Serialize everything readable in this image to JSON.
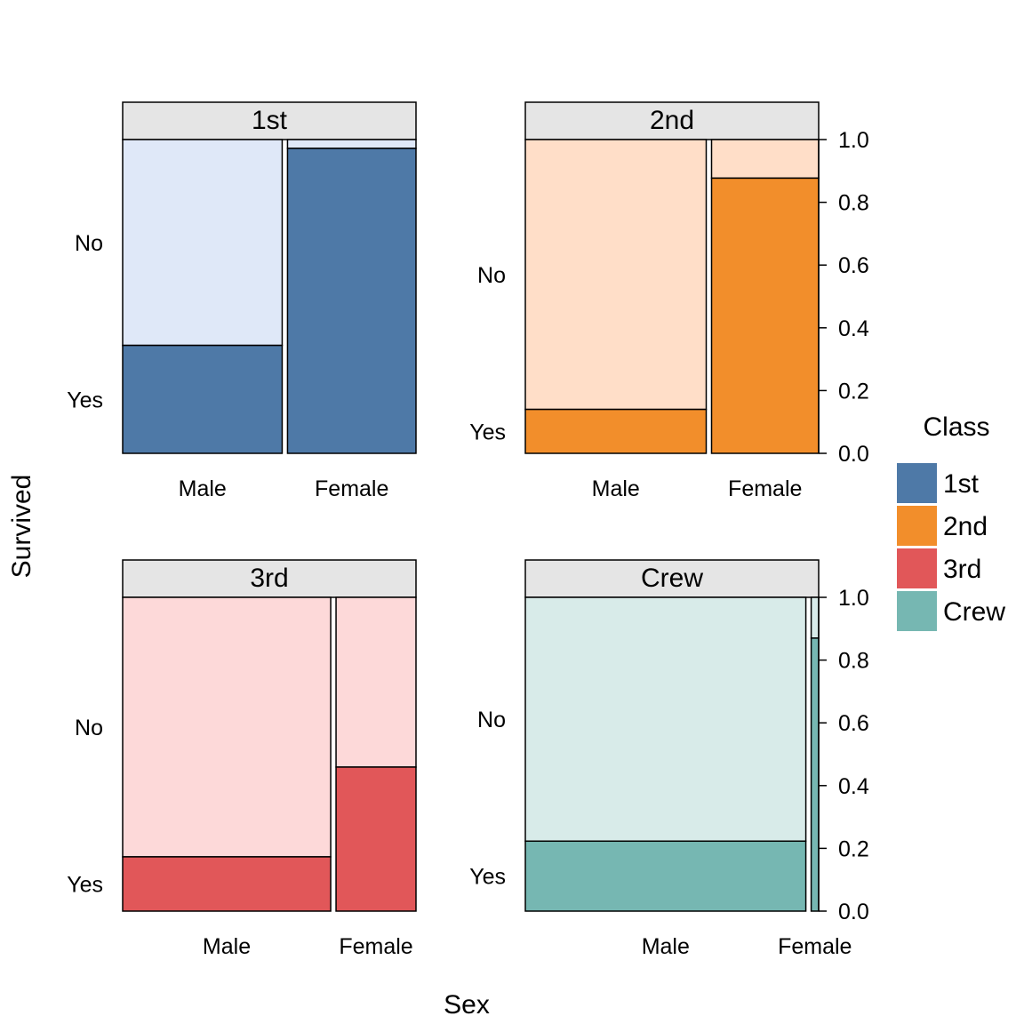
{
  "chart_data": {
    "type": "mosaic",
    "xlabel": "Sex",
    "ylabel": "Survived",
    "legend": {
      "title": "Class",
      "placement": "right",
      "entries": [
        "1st",
        "2nd",
        "3rd",
        "Crew"
      ]
    },
    "x_categories": [
      "Male",
      "Female"
    ],
    "y_categories": [
      "Yes",
      "No"
    ],
    "y_axis": {
      "range": [
        0,
        1
      ],
      "ticks": [
        "0.0",
        "0.2",
        "0.4",
        "0.6",
        "0.8",
        "1.0"
      ]
    },
    "colors": {
      "1st": {
        "dark": "#4E79A7",
        "light": "#DFE8F8"
      },
      "2nd": {
        "dark": "#F28E2B",
        "light": "#FFDEC8"
      },
      "3rd": {
        "dark": "#E15759",
        "light": "#FDD9D9"
      },
      "Crew": {
        "dark": "#76B7B2",
        "light": "#D8EBE9"
      }
    },
    "panels": [
      {
        "title": "1st",
        "counts": {
          "Male": 180,
          "Female": 145
        },
        "survived_fraction": {
          "Male": 0.344,
          "Female": 0.972
        }
      },
      {
        "title": "2nd",
        "counts": {
          "Male": 179,
          "Female": 106
        },
        "survived_fraction": {
          "Male": 0.14,
          "Female": 0.877
        }
      },
      {
        "title": "3rd",
        "counts": {
          "Male": 510,
          "Female": 196
        },
        "survived_fraction": {
          "Male": 0.173,
          "Female": 0.459
        }
      },
      {
        "title": "Crew",
        "counts": {
          "Male": 862,
          "Female": 23
        },
        "survived_fraction": {
          "Male": 0.223,
          "Female": 0.87
        }
      }
    ]
  }
}
